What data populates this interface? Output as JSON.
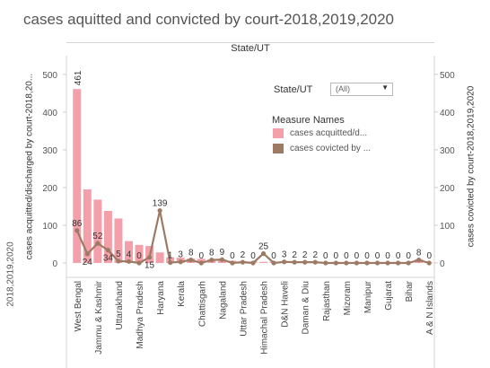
{
  "title": "cases aquitted and convicted by court-2018,2019,2020",
  "column_header": "State/UT",
  "left_truncated_label": "2018,2019,2020",
  "filter": {
    "label": "State/UT",
    "value": "(All)"
  },
  "legend": {
    "title": "Measure Names",
    "items": [
      {
        "label": "cases acquitted/d...",
        "color": "#f4a0aa"
      },
      {
        "label": "cases covicted by ...",
        "color": "#9c7a64"
      }
    ]
  },
  "chart_data": {
    "type": "bar+line",
    "ylabel_left": "cases acquitted/discharged by court-2018,20...",
    "ylabel_right": "cases covicted by court-2018,2019,2020",
    "ylim": [
      0,
      540
    ],
    "yticks": [
      0,
      100,
      200,
      300,
      400,
      500
    ],
    "categories": [
      "West Bengal",
      "",
      "Jammu & Kashmir",
      "",
      "Uttarakhand",
      "",
      "Madhya Pradesh",
      "",
      "Haryana",
      "",
      "Kerala",
      "",
      "Chattisgarh",
      "",
      "Nagaland",
      "",
      "Uttar Pradesh",
      "",
      "Himachal Pradesh",
      "",
      "D&N Haveli",
      "",
      "Daman & Diu",
      "",
      "Rajasthan",
      "",
      "Mizoram",
      "",
      "Manipur",
      "",
      "Gujarat",
      "",
      "Bihar",
      "",
      "A & N Islands"
    ],
    "series": [
      {
        "name": "cases acquitted/discharged by court-2018,2019,2020",
        "type": "bar",
        "color": "#f4a0aa",
        "values": [
          461,
          195,
          168,
          138,
          118,
          58,
          48,
          45,
          28,
          15,
          14,
          12,
          11,
          10,
          9,
          6,
          5,
          4,
          3,
          3,
          2,
          2,
          2,
          1,
          1,
          1,
          1,
          1,
          1,
          1,
          1,
          1,
          1,
          10,
          1
        ],
        "labels": [
          "461",
          "",
          "",
          "",
          "",
          "",
          "",
          "",
          "",
          "",
          "",
          "",
          "",
          "",
          "",
          "",
          "",
          "",
          "",
          "",
          "",
          "",
          "",
          "",
          "",
          "",
          "",
          "",
          "",
          "",
          "",
          "",
          "",
          "",
          ""
        ]
      },
      {
        "name": "cases covicted by court-2018,2019,2020",
        "type": "line",
        "color": "#9c7a64",
        "values": [
          86,
          24,
          52,
          34,
          5,
          4,
          0,
          15,
          139,
          1,
          3,
          8,
          0,
          8,
          9,
          0,
          2,
          0,
          25,
          0,
          3,
          2,
          2,
          2,
          0,
          0,
          0,
          0,
          0,
          0,
          0,
          0,
          0,
          8,
          0
        ],
        "labels": [
          "86",
          "24",
          "52",
          "34",
          "5",
          "4",
          "0",
          "15",
          "139",
          "1",
          "3",
          "8",
          "0",
          "8",
          "9",
          "0",
          "2",
          "0",
          "25",
          "0",
          "3",
          "2",
          "2",
          "2",
          "0",
          "0",
          "0",
          "0",
          "0",
          "0",
          "0",
          "0",
          "0",
          "8",
          "0"
        ]
      }
    ]
  }
}
